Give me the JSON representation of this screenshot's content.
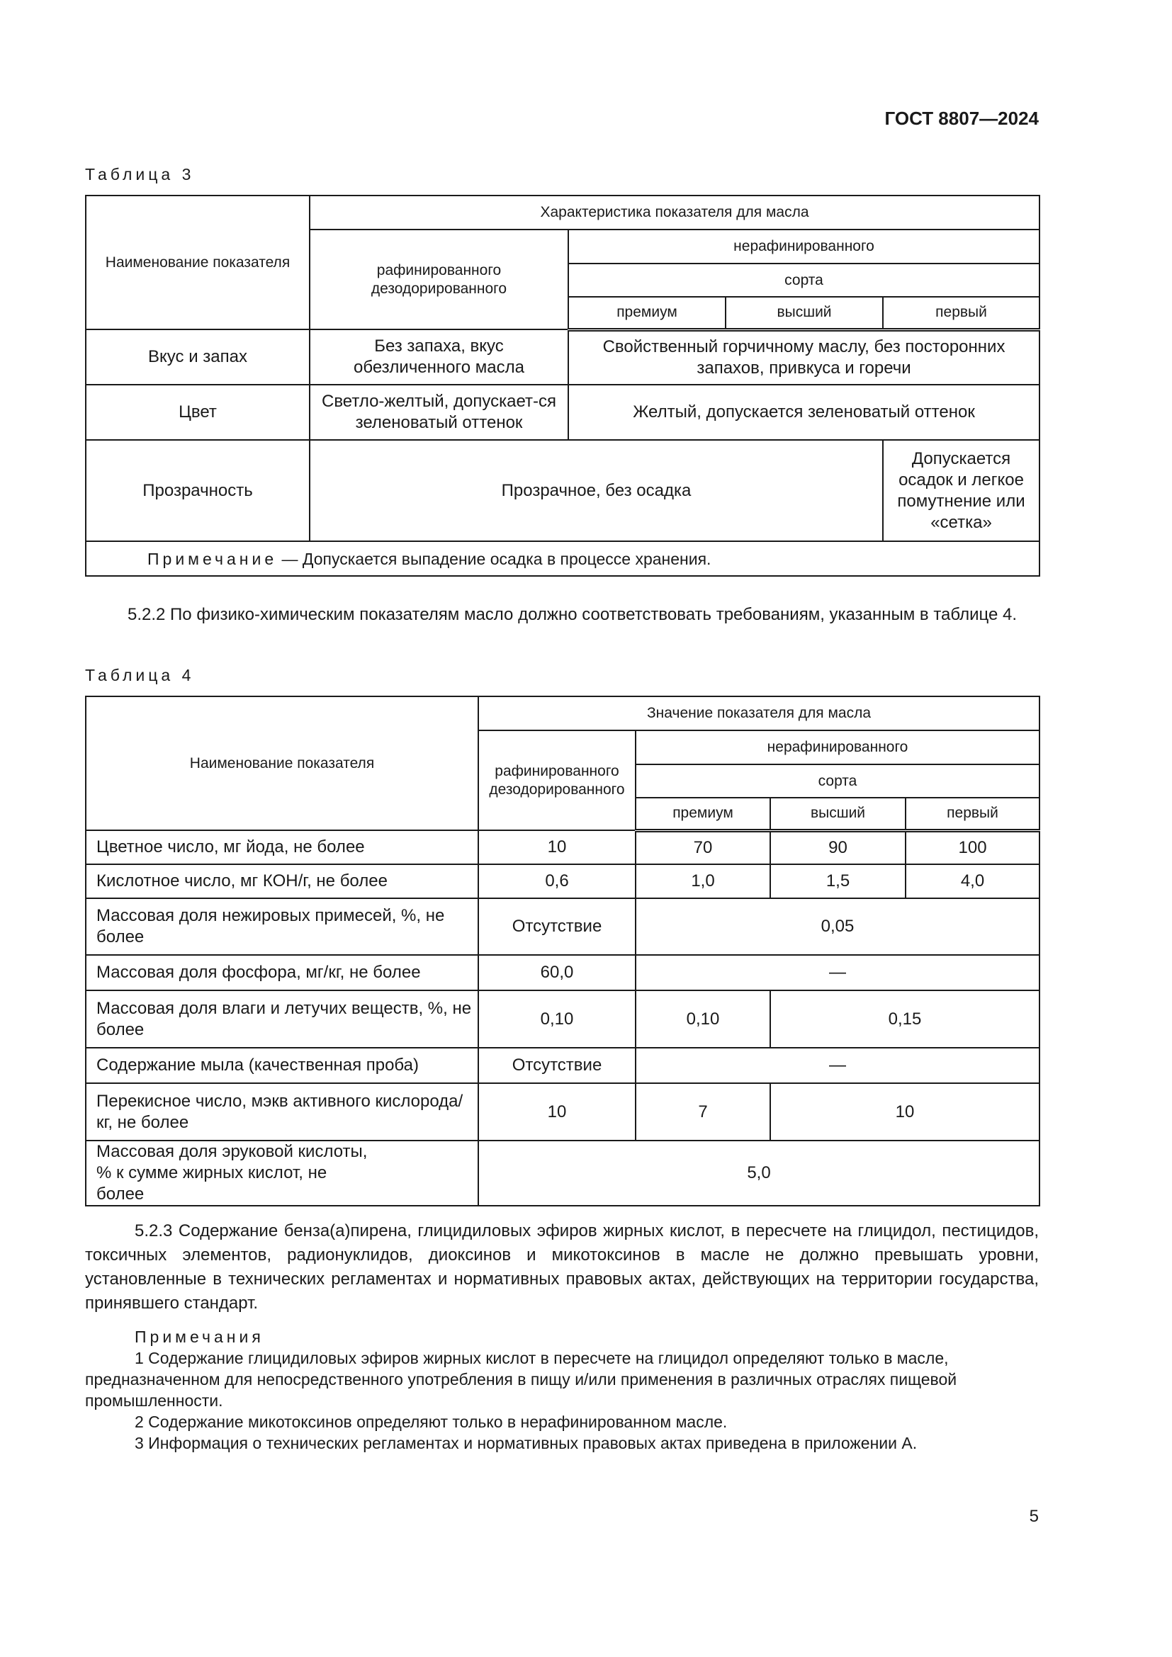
{
  "header": {
    "doc_code": "ГОСТ 8807—2024"
  },
  "table3": {
    "caption": "Таблица 3",
    "col_name": "Наименование показателя",
    "group": "Характеристика показателя для масла",
    "refined": "рафинированного дезодорированного",
    "unrefined": "нерафинированного",
    "grade": "сорта",
    "grades": [
      "премиум",
      "высший",
      "первый"
    ],
    "rows": [
      {
        "name": "Вкус и запах",
        "refined": "Без запаха, вкус обезличенного масла",
        "unrefined": "Свойственный горчичному маслу, без посторонних запахов, привкуса и горечи"
      },
      {
        "name": "Цвет",
        "refined": "Светло-желтый, допускает-ся зеленоватый оттенок",
        "unrefined": "Желтый, допускается зеленоватый оттенок"
      },
      {
        "name": "Прозрачность",
        "common": "Прозрачное, без осадка",
        "first": "Допускается осадок и легкое помутнение или «сетка»"
      }
    ],
    "note_label": "Примечание",
    "note_text": " — Допускается выпадение осадка в процессе хранения."
  },
  "para_522": "5.2.2 По физико-химическим показателям масло должно соответствовать требованиям, указанным в таблице 4.",
  "table4": {
    "caption": "Таблица 4",
    "col_name": "Наименование показателя",
    "group": "Значение показателя для масла",
    "refined": "рафинированного дезодорированного",
    "unrefined": "нерафинированного",
    "grade": "сорта",
    "grades": [
      "премиум",
      "высший",
      "первый"
    ],
    "rows": [
      {
        "name": "Цветное число, мг йода, не более",
        "v": [
          "10",
          "70",
          "90",
          "100"
        ]
      },
      {
        "name": "Кислотное число, мг КОН/г, не более",
        "v": [
          "0,6",
          "1,0",
          "1,5",
          "4,0"
        ]
      },
      {
        "name": "Массовая доля нежировых примесей, %, не более",
        "v": [
          "Отсутствие",
          "0,05"
        ]
      },
      {
        "name": "Массовая доля фосфора, мг/кг, не более",
        "v": [
          "60,0",
          "—"
        ]
      },
      {
        "name": "Массовая доля влаги и летучих веществ, %, не более",
        "v": [
          "0,10",
          "0,10",
          "0,15"
        ]
      },
      {
        "name": "Содержание мыла (качественная проба)",
        "v": [
          "Отсутствие",
          "—"
        ]
      },
      {
        "name": "Перекисное число, мэкв активного кислорода/кг, не более",
        "v": [
          "10",
          "7",
          "10"
        ]
      },
      {
        "name": "Массовая доля эруковой кислоты, % к сумме жирных кислот, не более",
        "v": [
          "5,0"
        ]
      }
    ]
  },
  "para_523": "5.2.3 Содержание бенза(а)пирена, глицидиловых эфиров жирных кислот, в пересчете на глицидол, пестицидов, токсичных элементов, радионуклидов, диоксинов и микотоксинов в масле не должно превышать уровни, установленные в технических регламентах и нормативных правовых актах, действующих на территории государства, принявшего стандарт.",
  "notes": {
    "title": "Примечания",
    "items": [
      "1 Содержание глицидиловых эфиров жирных кислот в пересчете на глицидол определяют только в масле, предназначенном для непосредственного употребления в пищу и/или применения в различных отраслях пищевой промышленности.",
      "2 Содержание микотоксинов определяют только в нерафинированном масле.",
      "3 Информация о технических регламентах и нормативных правовых актах приведена в приложении А."
    ]
  },
  "page_number": "5"
}
